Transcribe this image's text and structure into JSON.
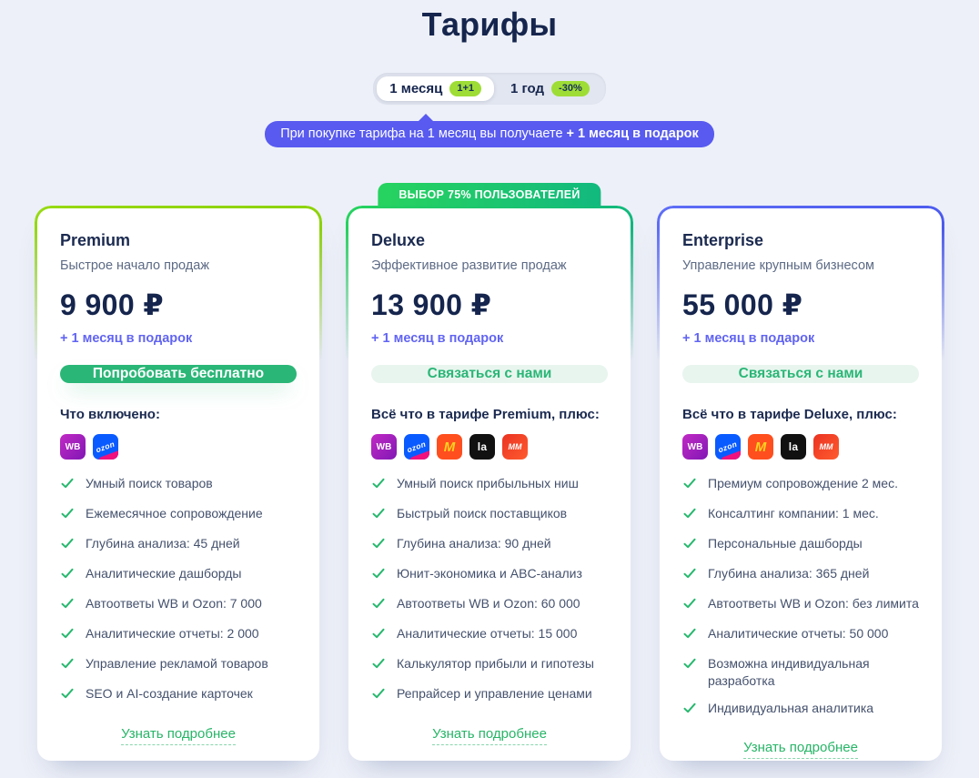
{
  "page": {
    "title": "Тарифы"
  },
  "billing_toggle": {
    "month": {
      "label": "1 месяц",
      "badge": "1+1",
      "selected": true
    },
    "year": {
      "label": "1 год",
      "badge": "-30%",
      "selected": false
    }
  },
  "promo_tooltip": {
    "text": "При покупке тарифа на 1 месяц вы получаете",
    "highlight": "+ 1 месяц в подарок"
  },
  "colors": {
    "background": "#edf0f8",
    "heading_navy": "#15254d",
    "tooltip_purple": "#585af0",
    "lime_badge": "#9edd35",
    "button_green": "#2ab677",
    "check_green": "#26b86e",
    "link_green": "#27b567",
    "gift_indigo": "#6164f2",
    "premium_accent": "#8ed30a",
    "deluxe_accent_from": "#27d35f",
    "deluxe_accent_to": "#12b97e",
    "enterprise_accent": "#5b6cf5"
  },
  "marketplace_icons": {
    "wildberries": {
      "glyph": "WB"
    },
    "ozon": {
      "glyph": "ozon"
    },
    "yandex_market": {
      "glyph": "M"
    },
    "lamoda": {
      "glyph": "la"
    },
    "megamarket": {
      "glyph": "МM"
    }
  },
  "plans": [
    {
      "id": "premium",
      "name": "Premium",
      "tagline": "Быстрое начало продаж",
      "price": "9 900 ₽",
      "gift": "+ 1 месяц в подарок",
      "cta_label": "Попробовать бесплатно",
      "cta_style": "solid",
      "includes_heading": "Что включено:",
      "marketplaces": [
        "wildberries",
        "ozon"
      ],
      "features": [
        "Умный поиск товаров",
        "Ежемесячное сопровождение",
        "Глубина анализа: 45 дней",
        "Аналитические дашборды",
        "Автоответы WB и Ozon: 7 000",
        "Аналитические отчеты: 2 000",
        "Управление рекламой товаров",
        "SEO и AI-создание карточек"
      ],
      "more_link": "Узнать подробнее",
      "accent": [
        "#97da14",
        "#8ed30a"
      ]
    },
    {
      "id": "deluxe",
      "name": "Deluxe",
      "tagline": "Эффективное развитие продаж",
      "price": "13 900 ₽",
      "gift": "+ 1 месяц в подарок",
      "top_badge": "ВЫБОР 75% ПОЛЬЗОВАТЕЛЕЙ",
      "cta_label": "Связаться с нами",
      "cta_style": "soft",
      "includes_heading": "Всё что в тарифе Premium, плюс:",
      "marketplaces": [
        "wildberries",
        "ozon",
        "yandex_market",
        "lamoda",
        "megamarket"
      ],
      "features": [
        "Умный поиск прибыльных ниш",
        "Быстрый поиск поставщиков",
        "Глубина анализа: 90 дней",
        "Юнит-экономика и ABC-анализ",
        "Автоответы WB и Ozon: 60 000",
        "Аналитические отчеты: 15 000",
        "Калькулятор прибыли и гипотезы",
        "Репрайсер и управление ценами"
      ],
      "more_link": "Узнать подробнее",
      "accent": [
        "#27d35f",
        "#12b97e"
      ]
    },
    {
      "id": "enterprise",
      "name": "Enterprise",
      "tagline": "Управление крупным бизнесом",
      "price": "55 000 ₽",
      "gift": "+ 1 месяц в подарок",
      "cta_label": "Связаться с нами",
      "cta_style": "soft",
      "includes_heading": "Всё что в тарифе Deluxe, плюс:",
      "marketplaces": [
        "wildberries",
        "ozon",
        "yandex_market",
        "lamoda",
        "megamarket"
      ],
      "features": [
        "Премиум сопровождение 2 мес.",
        "Консалтинг компании: 1 мес.",
        "Персональные дашборды",
        "Глубина анализа: 365 дней",
        "Автоответы WB и Ozon: без лимита",
        "Аналитические отчеты: 50 000",
        "Возможна индивидуальная разработка",
        "Индивидуальная аналитика"
      ],
      "more_link": "Узнать подробнее",
      "accent": [
        "#5f6ef6",
        "#4d5cee"
      ]
    }
  ]
}
